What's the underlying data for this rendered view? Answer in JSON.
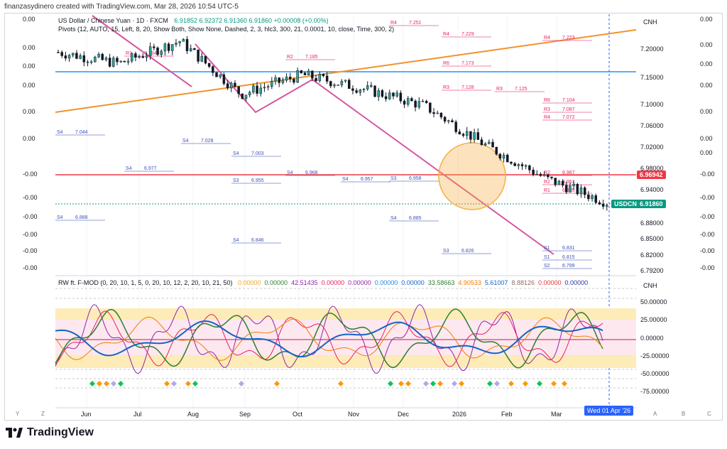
{
  "header": {
    "credit": "finanzasydinero created with TradingView.com, Mar 28, 2026 10:54 UTC-5",
    "symbol_line": "US Dollar / Chinese Yuan · 1D · FXCM",
    "ohlc_line": "6.91852  6.92372  6.91360  6.91860  +0.00008 (+0.00%)",
    "pivots_line": "Pivots (12, AUTO, 15, Left, 8, 20, Show Both, Show None, Dashed, 2, 3, hlc3, 300, 21, 0.0001, 10, close, Time, 300, 2)"
  },
  "price_axis": {
    "unit": "CNH",
    "labels": [
      "7.20000",
      "7.15000",
      "7.10000",
      "7.06000",
      "7.02000",
      "6.98000",
      "6.94000",
      "6.91860",
      "6.88000",
      "6.85000",
      "6.82000",
      "6.79200"
    ],
    "current_tag": "6.96942",
    "symbol_tag": "USDCNH",
    "price_tag": "6.91860"
  },
  "left_axis": {
    "labels": [
      "0.00",
      "0.00",
      "0.00",
      "0.00",
      "0.00",
      "0.00",
      "-0.00",
      "-0.00",
      "-0.00",
      "-0.00",
      "-0.00",
      "-0.00",
      "-0.00"
    ]
  },
  "right_axis2": {
    "labels": [
      "0.00",
      "0.00",
      "0.00",
      "0.00",
      "0.00",
      "0.00",
      "0.00",
      "-0.00",
      "-0.00",
      "-0.00",
      "-0.00",
      "-0.00",
      "-0.00",
      "-0.00",
      "-0.00"
    ]
  },
  "indicator": {
    "legend": "RW ft. F-MOD (0, 20, 10, 1, 5, 0, 20, 10, 12, 2, 20, 10, 21, 50)",
    "values": [
      "0.00000",
      "0.00000",
      "42.51435",
      "0.00000",
      "0.00000",
      "0.00000",
      "0.00000",
      "33.58663",
      "4.90533",
      "5.61007",
      "8.88126",
      "0.00000",
      "0.00000"
    ],
    "value_colors": [
      "#f5a623",
      "#2e7d32",
      "#8e24aa",
      "#e91e63",
      "#8e24aa",
      "#1e88e5",
      "#1565c0",
      "#2e7d32",
      "#f57c00",
      "#1565c0",
      "#8d6e63",
      "#e53935",
      "#283593"
    ],
    "unit": "CNH",
    "axis_labels": [
      "50.00000",
      "25.00000",
      "0.00000",
      "-25.00000",
      "-50.00000",
      "-75.00000"
    ]
  },
  "time_axis": {
    "labels": [
      "Jun",
      "Jul",
      "Aug",
      "Sep",
      "Oct",
      "Nov",
      "Dec",
      "2026",
      "Feb",
      "Mar"
    ],
    "cursor_date": "Wed 01 Apr '26",
    "buttons": [
      "Y",
      "Z",
      "A",
      "B",
      "C"
    ]
  },
  "pivot_labels": {
    "items": [
      "R4",
      "7.251",
      "R4",
      "7.229",
      "R4",
      "7.223",
      "R1",
      "7.194",
      "R2",
      "7.185",
      "R6",
      "7.173",
      "R3",
      "7.128",
      "R3",
      "7.125",
      "R6",
      "7.104",
      "R3",
      "7.087",
      "R4",
      "7.072",
      "S4",
      "7.044",
      "S4",
      "7.028",
      "S4",
      "7.003",
      "S4",
      "6.977",
      "S4",
      "6.968",
      "S4",
      "6.957",
      "S3",
      "6.955",
      "S3",
      "6.958",
      "S4",
      "6.888",
      "S4",
      "6.885",
      "S4",
      "6.846",
      "S3",
      "6.826",
      "S1",
      "6.815",
      "S2",
      "6.799",
      "S1",
      "6.831",
      "R1",
      "6.935",
      "R2",
      "6.951",
      "R2",
      "6.967"
    ]
  },
  "footer": {
    "brand": "TradingView"
  },
  "colors": {
    "up": "#26a69a",
    "down": "#ef5350",
    "candle": "#131722",
    "trend_orange": "#f0932b",
    "trend_pink": "#d6569f",
    "hline_pink": "#f23645",
    "hline_blue": "#2196f3",
    "circle": "#f5b041",
    "price_tag": "#089981",
    "current_tag": "#f23645"
  },
  "chart_data": {
    "type": "line",
    "title": "US Dollar / Chinese Yuan · 1D · FXCM",
    "x": [
      "Jun",
      "Jul",
      "Aug",
      "Sep",
      "Oct",
      "Nov",
      "Dec",
      "2026",
      "Feb",
      "Mar"
    ],
    "series": [
      {
        "name": "USDCNH",
        "values": [
          7.185,
          7.165,
          7.205,
          7.11,
          7.145,
          7.12,
          7.09,
          7.02,
          6.96,
          6.918
        ]
      }
    ],
    "ylim": [
      6.79,
      7.25
    ]
  }
}
